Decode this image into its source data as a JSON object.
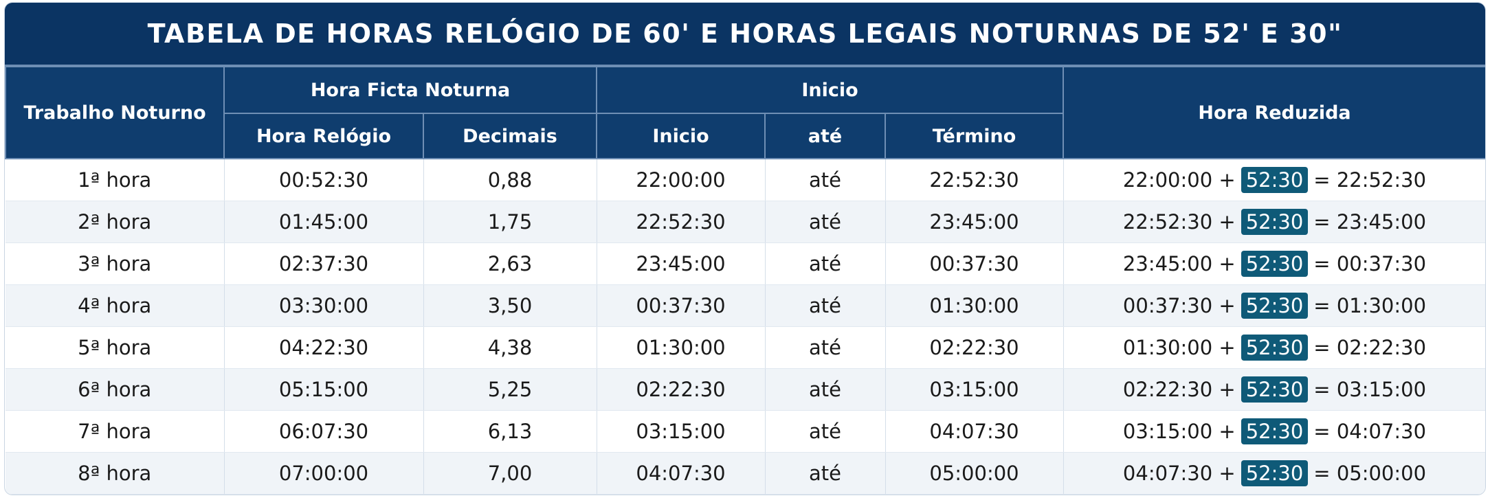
{
  "header": {
    "title": "TABELA DE HORAS RELÓGIO DE 60' E HORAS LEGAIS NOTURNAS DE 52' E 30\""
  },
  "table": {
    "group_headers": [
      "Trabalho Noturno",
      "Hora Ficta Noturna",
      "Inicio",
      "Hora Reduzida"
    ],
    "sub_headers": [
      "Hora Relógio",
      "Decimais",
      "Inicio",
      "até",
      "Término"
    ],
    "rows": [
      {
        "cells": [
          "1ª hora",
          "00:52:30",
          "0,88",
          "22:00:00",
          "até",
          "22:52:30"
        ],
        "reduced": [
          "22:00:00",
          "+",
          "52:30",
          "=",
          "22:52:30"
        ]
      },
      {
        "cells": [
          "2ª hora",
          "01:45:00",
          "1,75",
          "22:52:30",
          "até",
          "23:45:00"
        ],
        "reduced": [
          "22:52:30",
          "+",
          "52:30",
          "=",
          "23:45:00"
        ]
      },
      {
        "cells": [
          "3ª hora",
          "02:37:30",
          "2,63",
          "23:45:00",
          "até",
          "00:37:30"
        ],
        "reduced": [
          "23:45:00",
          "+",
          "52:30",
          "=",
          "00:37:30"
        ]
      },
      {
        "cells": [
          "4ª hora",
          "03:30:00",
          "3,50",
          "00:37:30",
          "até",
          "01:30:00"
        ],
        "reduced": [
          "00:37:30",
          "+",
          "52:30",
          "=",
          "01:30:00"
        ]
      },
      {
        "cells": [
          "5ª hora",
          "04:22:30",
          "4,38",
          "01:30:00",
          "até",
          "02:22:30"
        ],
        "reduced": [
          "01:30:00",
          "+",
          "52:30",
          "=",
          "02:22:30"
        ]
      },
      {
        "cells": [
          "6ª hora",
          "05:15:00",
          "5,25",
          "02:22:30",
          "até",
          "03:15:00"
        ],
        "reduced": [
          "02:22:30",
          "+",
          "52:30",
          "=",
          "03:15:00"
        ]
      },
      {
        "cells": [
          "7ª hora",
          "06:07:30",
          "6,13",
          "03:15:00",
          "até",
          "04:07:30"
        ],
        "reduced": [
          "03:15:00",
          "+",
          "52:30",
          "=",
          "04:07:30"
        ]
      },
      {
        "cells": [
          "8ª hora",
          "07:00:00",
          "7,00",
          "04:07:30",
          "até",
          "05:00:00"
        ],
        "reduced": [
          "04:07:30",
          "+",
          "52:30",
          "=",
          "05:00:00"
        ]
      }
    ]
  }
}
